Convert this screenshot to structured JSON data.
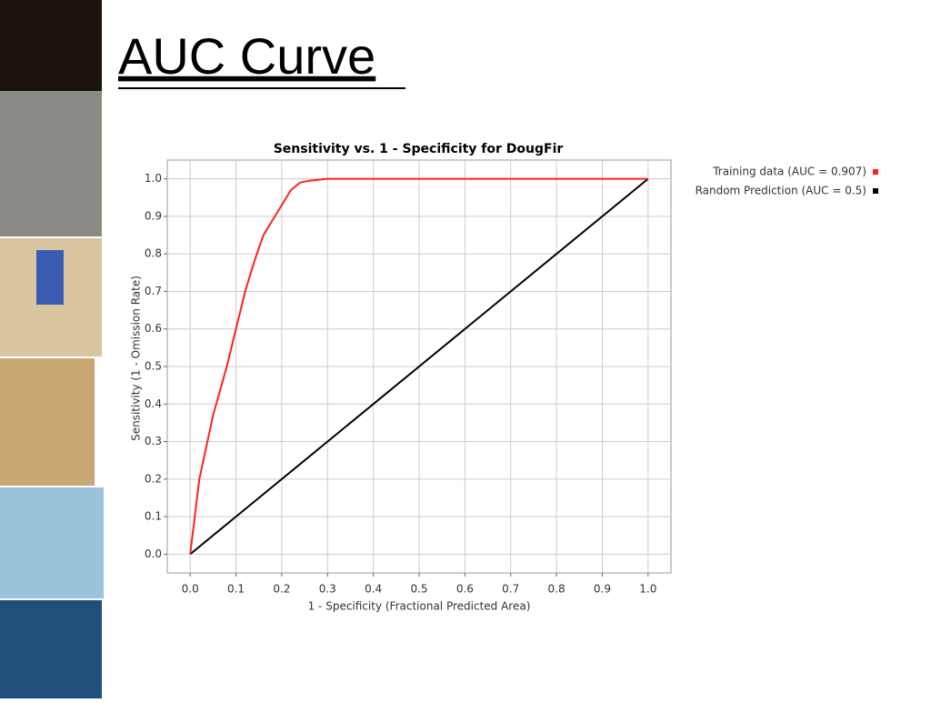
{
  "slide_title": "AUC Curve",
  "chart_data": {
    "type": "line",
    "title": "Sensitivity vs. 1 - Specificity for DougFir",
    "x_label": "1 - Specificity  (Fractional Predicted Area)",
    "y_label": "Sensitivity  (1 - Omission Rate)",
    "xlim": [
      -0.05,
      1.05
    ],
    "ylim": [
      -0.05,
      1.05
    ],
    "xticks": [
      {
        "value": 0,
        "label": "0.0"
      },
      0.1,
      0.2,
      0.3,
      0.4,
      0.5,
      0.6,
      0.7,
      0.8,
      0.9,
      {
        "value": 1,
        "label": "1.0"
      }
    ],
    "yticks": [
      {
        "value": 0,
        "label": "0.0"
      },
      0.1,
      0.2,
      0.3,
      0.4,
      0.5,
      0.6,
      0.7,
      0.8,
      0.9,
      {
        "value": 1,
        "label": "1.0"
      }
    ],
    "grid": true,
    "legend": "right",
    "series": [
      {
        "name": "Training data (AUC = 0.907)",
        "color": "#ff2020",
        "x": [
          0,
          0.02,
          0.05,
          0.08,
          0.1,
          0.12,
          0.14,
          0.16,
          0.18,
          0.2,
          0.22,
          0.24,
          0.26,
          0.3,
          0.5,
          1.0
        ],
        "values": [
          0,
          0.2,
          0.37,
          0.5,
          0.6,
          0.7,
          0.78,
          0.85,
          0.89,
          0.93,
          0.97,
          0.99,
          0.995,
          1.0,
          1.0,
          1.0
        ]
      },
      {
        "name": "Random Prediction (AUC = 0.5)",
        "color": "#000000",
        "x": [
          0,
          1
        ],
        "values": [
          0,
          1
        ]
      }
    ]
  }
}
